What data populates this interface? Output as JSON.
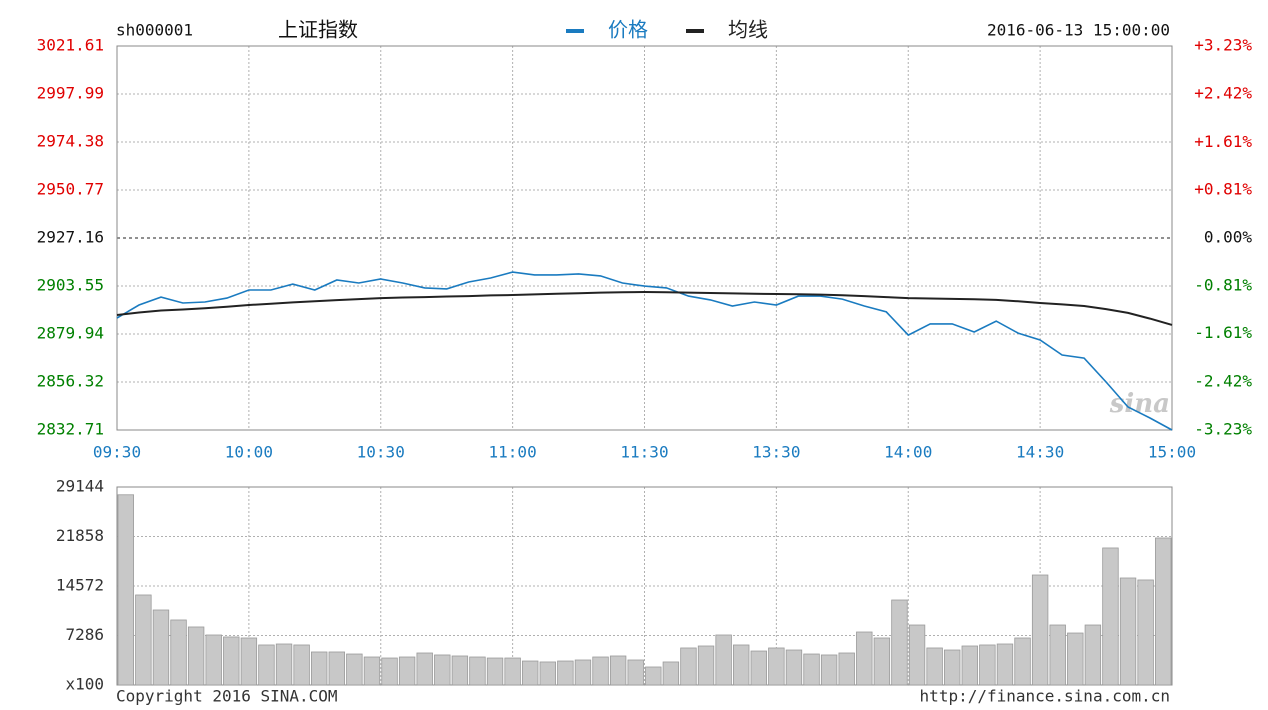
{
  "code": "sh000001",
  "timestamp": "2016-06-13 15:00:00",
  "watermark": "sina",
  "footer": {
    "copyright": "Copyright 2016 SINA.COM",
    "url": "http://finance.sina.com.cn"
  },
  "chart_data": [
    {
      "type": "line",
      "title": "上证指数",
      "up_color": "#e00000",
      "down_color": "#008000",
      "grid": true,
      "x": [
        0,
        5,
        10,
        15,
        20,
        25,
        30,
        35,
        40,
        45,
        50,
        55,
        60,
        65,
        70,
        75,
        80,
        85,
        90,
        95,
        100,
        105,
        110,
        115,
        120,
        125,
        130,
        135,
        140,
        145,
        150,
        155,
        160,
        165,
        170,
        175,
        180,
        185,
        190,
        195,
        200,
        205,
        210,
        215,
        220,
        225,
        230,
        235,
        240
      ],
      "xlim": [
        0,
        240
      ],
      "xticks": [
        {
          "value": 0,
          "label": "09:30"
        },
        {
          "value": 30,
          "label": "10:00"
        },
        {
          "value": 60,
          "label": "10:30"
        },
        {
          "value": 90,
          "label": "11:00"
        },
        {
          "value": 120,
          "label": "11:30"
        },
        {
          "value": 150,
          "label": "13:30"
        },
        {
          "value": 180,
          "label": "14:00"
        },
        {
          "value": 210,
          "label": "14:30"
        },
        {
          "value": 240,
          "label": "15:00"
        }
      ],
      "ylim": [
        2832.71,
        3021.61
      ],
      "yticks": [
        3021.61,
        2997.99,
        2974.38,
        2950.77,
        2927.16,
        2903.55,
        2879.94,
        2856.32,
        2832.71
      ],
      "y2lim": [
        -3.23,
        3.23
      ],
      "y2ticks": [
        {
          "value": 3.23,
          "label": "+3.23%"
        },
        {
          "value": 2.42,
          "label": "+2.42%"
        },
        {
          "value": 1.61,
          "label": "+1.61%"
        },
        {
          "value": 0.81,
          "label": "+0.81%"
        },
        {
          "value": 0,
          "label": "0.00%"
        },
        {
          "value": -0.81,
          "label": "-0.81%"
        },
        {
          "value": -1.61,
          "label": "-1.61%"
        },
        {
          "value": -2.42,
          "label": "-2.42%"
        },
        {
          "value": -3.23,
          "label": "-3.23%"
        }
      ],
      "series": [
        {
          "name": "价格",
          "color": "#1a7bc0",
          "values": [
            2887.8,
            2894.2,
            2898.1,
            2895.2,
            2895.7,
            2897.6,
            2901.6,
            2901.6,
            2904.5,
            2901.6,
            2906.5,
            2905.0,
            2907.0,
            2905.0,
            2902.6,
            2902.1,
            2905.5,
            2907.5,
            2910.4,
            2909.0,
            2909.0,
            2909.5,
            2908.5,
            2905.0,
            2903.5,
            2902.6,
            2898.6,
            2896.7,
            2893.7,
            2895.7,
            2894.2,
            2898.6,
            2898.6,
            2897.1,
            2893.7,
            2890.8,
            2879.4,
            2884.9,
            2884.9,
            2880.9,
            2886.3,
            2880.4,
            2877.0,
            2869.6,
            2868.1,
            2856.3,
            2844.0,
            2838.6,
            2832.7
          ]
        },
        {
          "name": "均线",
          "color": "#222222",
          "values": [
            2889.3,
            2890.5,
            2891.5,
            2892.0,
            2892.6,
            2893.3,
            2894.2,
            2894.8,
            2895.5,
            2896.0,
            2896.6,
            2897.1,
            2897.6,
            2897.9,
            2898.1,
            2898.4,
            2898.6,
            2898.9,
            2899.1,
            2899.4,
            2899.7,
            2900.0,
            2900.3,
            2900.5,
            2900.6,
            2900.5,
            2900.3,
            2900.1,
            2899.9,
            2899.7,
            2899.6,
            2899.5,
            2899.3,
            2899.0,
            2898.6,
            2898.1,
            2897.6,
            2897.4,
            2897.2,
            2897.0,
            2896.7,
            2896.0,
            2895.2,
            2894.5,
            2893.7,
            2892.2,
            2890.3,
            2887.5,
            2884.4
          ]
        }
      ]
    },
    {
      "type": "bar",
      "color": "#c8c8c8",
      "x": [
        0,
        4,
        8,
        12,
        16,
        20,
        24,
        28,
        32,
        36,
        40,
        44,
        48,
        52,
        56,
        60,
        64,
        68,
        72,
        76,
        80,
        84,
        88,
        92,
        96,
        100,
        104,
        108,
        112,
        116,
        120,
        124,
        128,
        132,
        136,
        140,
        144,
        148,
        152,
        156,
        160,
        164,
        168,
        172,
        176,
        180,
        184,
        188,
        192,
        196,
        200,
        204,
        208,
        212,
        216,
        220,
        224,
        228,
        232,
        236
      ],
      "bar_width": 4,
      "xlim": [
        0,
        240
      ],
      "values": [
        28000,
        13250,
        11040,
        9570,
        8540,
        7360,
        7070,
        6920,
        5890,
        6035,
        5890,
        4860,
        4860,
        4560,
        4120,
        3970,
        4120,
        4710,
        4420,
        4270,
        4120,
        3970,
        3970,
        3530,
        3390,
        3530,
        3680,
        4120,
        4270,
        3680,
        2650,
        3390,
        5450,
        5740,
        7360,
        5890,
        5000,
        5450,
        5150,
        4560,
        4420,
        4710,
        7800,
        6920,
        12510,
        8830,
        5450,
        5150,
        5740,
        5890,
        6035,
        6920,
        16190,
        8830,
        7650,
        8830,
        20170,
        15750,
        15460,
        21640
      ],
      "ylim": [
        0,
        29144
      ],
      "yticks": [
        29144,
        21858,
        14572,
        7286,
        {
          "value": 0,
          "label": "x100"
        }
      ]
    }
  ]
}
